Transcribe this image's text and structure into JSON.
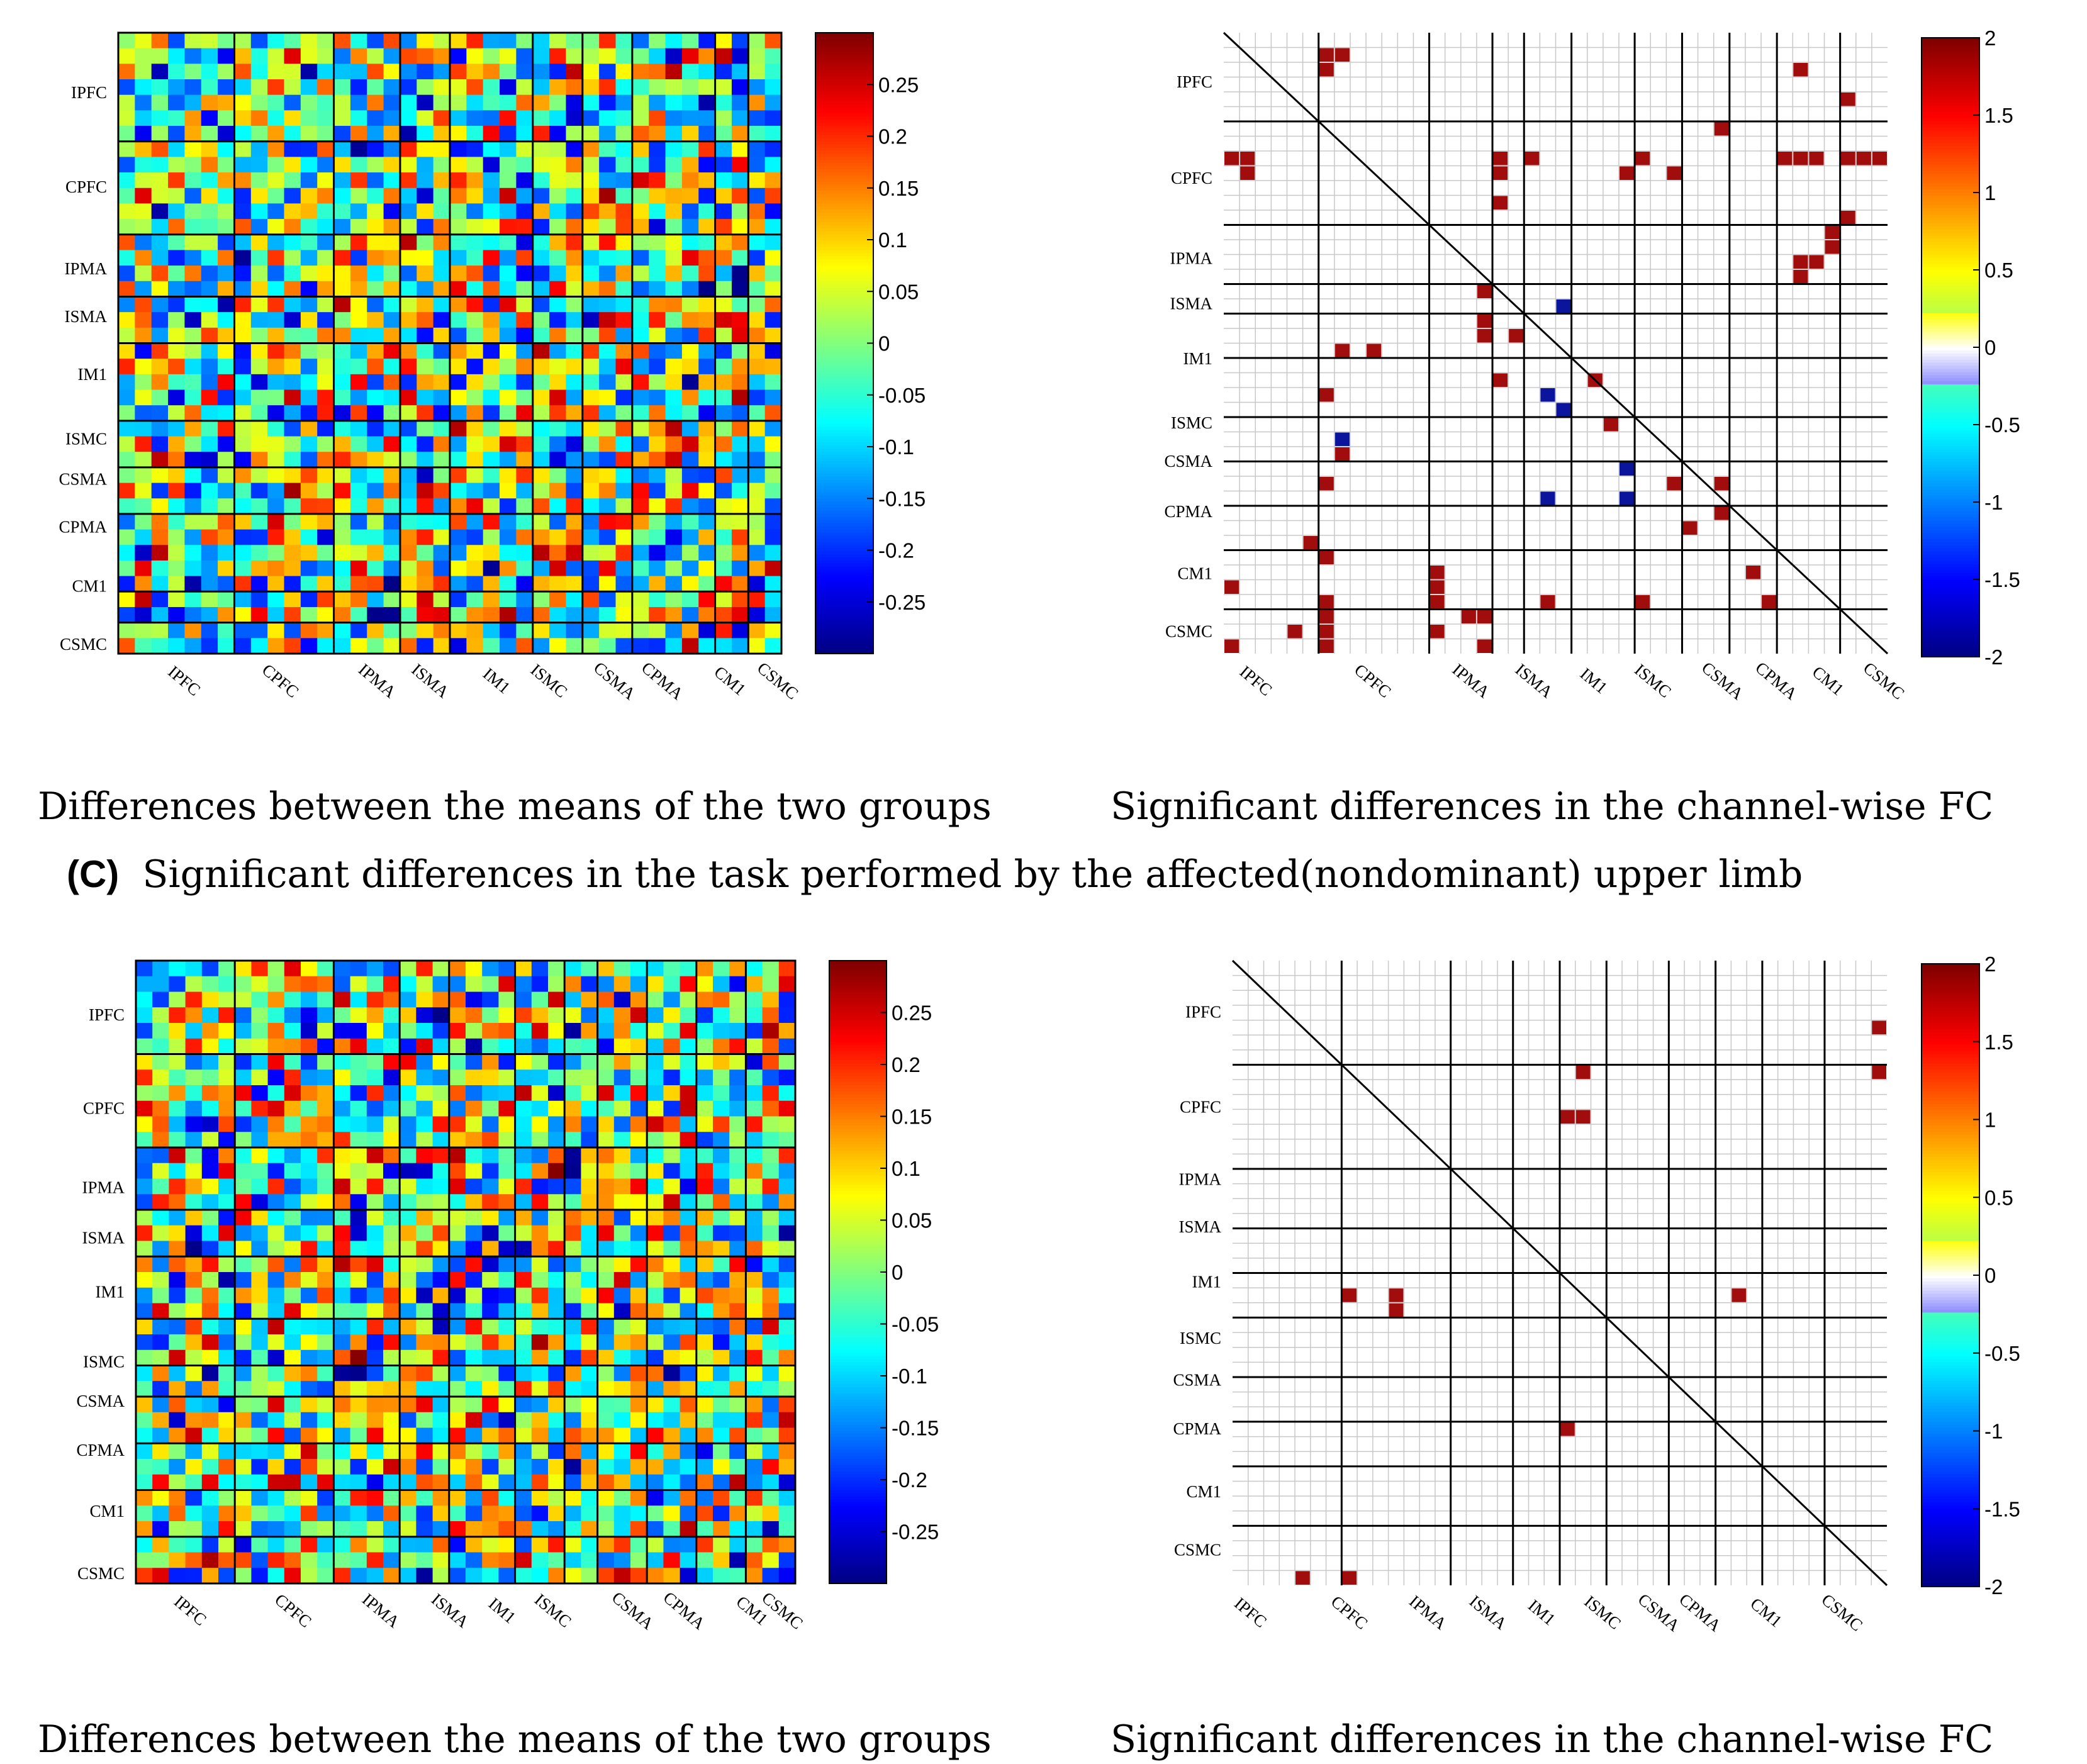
{
  "panels": {
    "C": {
      "letter": "(C)",
      "title": "Significant differences in the task performed by the affected(nondominant) upper limb",
      "mean_caption": "Differences between the means of the two groups",
      "sig_caption": "Significant differences in the channel-wise FC"
    },
    "D": {
      "mean_caption": "Differences between the means of the two groups",
      "sig_caption": "Significant differences in the channel-wise FC"
    }
  },
  "regions": [
    "IPFC",
    "CPFC",
    "IPMA",
    "ISMA",
    "IM1",
    "ISMC",
    "CSMA",
    "CPMA",
    "CM1",
    "CSMC"
  ],
  "colors": {
    "sig_positive": "#a10d0d",
    "sig_negative": "#0b149c",
    "grid": "#c8c8c8"
  },
  "chart_data": [
    {
      "id": "c-mean",
      "type": "heatmap",
      "title": "Differences between the means of the two groups",
      "n_channels": 40,
      "region_boundaries": [
        7,
        13,
        17,
        20,
        25,
        28,
        31,
        36,
        38
      ],
      "colorscale": "jet",
      "clim": [
        -0.3,
        0.3
      ],
      "colorbar_ticks": [
        "0.25",
        "0.2",
        "0.15",
        "0.1",
        "0.05",
        "0",
        "-0.05",
        "-0.1",
        "-0.15",
        "-0.2",
        "-0.25"
      ],
      "colorbar_tick_values": [
        0.25,
        0.2,
        0.15,
        0.1,
        0.05,
        0,
        -0.05,
        -0.1,
        -0.15,
        -0.2,
        -0.25
      ],
      "seed": 11
    },
    {
      "id": "c-sig",
      "type": "heatmap",
      "title": "Significant differences in the channel-wise FC",
      "n_channels": 42,
      "region_boundaries": [
        6,
        13,
        17,
        19,
        22,
        26,
        29,
        32,
        35,
        39
      ],
      "clim": [
        -2,
        2
      ],
      "colorbar_ticks": [
        "2",
        "1.5",
        "1",
        "0.5",
        "0",
        "-0.5",
        "-1",
        "-1.5",
        "-2"
      ],
      "colorbar_tick_values": [
        2,
        1.5,
        1,
        0.5,
        0,
        -0.5,
        -1,
        -1.5,
        -2
      ],
      "significant_cells": [
        [
          1,
          6,
          2
        ],
        [
          1,
          7,
          2
        ],
        [
          2,
          6,
          2
        ],
        [
          2,
          36,
          2
        ],
        [
          4,
          39,
          2
        ],
        [
          6,
          31,
          2
        ],
        [
          8,
          0,
          2
        ],
        [
          8,
          1,
          2
        ],
        [
          8,
          17,
          2
        ],
        [
          8,
          19,
          2
        ],
        [
          8,
          26,
          2
        ],
        [
          8,
          35,
          2
        ],
        [
          8,
          36,
          2
        ],
        [
          8,
          37,
          2
        ],
        [
          8,
          39,
          2
        ],
        [
          8,
          40,
          2
        ],
        [
          8,
          41,
          2
        ],
        [
          9,
          1,
          2
        ],
        [
          9,
          17,
          2
        ],
        [
          9,
          25,
          2
        ],
        [
          9,
          28,
          2
        ],
        [
          11,
          17,
          2
        ],
        [
          12,
          39,
          2
        ],
        [
          13,
          38,
          2
        ],
        [
          14,
          38,
          2
        ],
        [
          15,
          36,
          2
        ],
        [
          15,
          37,
          2
        ],
        [
          16,
          36,
          2
        ],
        [
          17,
          16,
          2
        ],
        [
          18,
          21,
          -2
        ],
        [
          19,
          16,
          2
        ],
        [
          20,
          16,
          2
        ],
        [
          20,
          18,
          2
        ],
        [
          21,
          7,
          2
        ],
        [
          21,
          9,
          2
        ],
        [
          23,
          17,
          2
        ],
        [
          23,
          23,
          2
        ],
        [
          24,
          6,
          2
        ],
        [
          24,
          20,
          -2
        ],
        [
          25,
          21,
          -2
        ],
        [
          26,
          24,
          2
        ],
        [
          27,
          7,
          -2
        ],
        [
          28,
          7,
          2
        ],
        [
          29,
          25,
          -2
        ],
        [
          30,
          6,
          2
        ],
        [
          30,
          28,
          2
        ],
        [
          30,
          31,
          2
        ],
        [
          31,
          20,
          -2
        ],
        [
          31,
          25,
          -2
        ],
        [
          32,
          31,
          2
        ],
        [
          33,
          29,
          2
        ],
        [
          34,
          5,
          2
        ],
        [
          35,
          6,
          2
        ],
        [
          36,
          13,
          2
        ],
        [
          36,
          33,
          2
        ],
        [
          37,
          0,
          2
        ],
        [
          37,
          13,
          2
        ],
        [
          38,
          6,
          2
        ],
        [
          38,
          13,
          2
        ],
        [
          38,
          20,
          2
        ],
        [
          38,
          26,
          2
        ],
        [
          38,
          34,
          2
        ],
        [
          39,
          6,
          2
        ],
        [
          39,
          15,
          2
        ],
        [
          39,
          16,
          2
        ],
        [
          40,
          13,
          2
        ],
        [
          40,
          4,
          2
        ],
        [
          40,
          6,
          2
        ],
        [
          41,
          0,
          2
        ],
        [
          41,
          6,
          2
        ],
        [
          41,
          16,
          2
        ]
      ]
    },
    {
      "id": "d-mean",
      "type": "heatmap",
      "title": "Differences between the means of the two groups",
      "n_channels": 40,
      "region_boundaries": [
        6,
        12,
        16,
        19,
        23,
        26,
        28,
        31,
        34,
        37
      ],
      "colorscale": "jet",
      "clim": [
        -0.3,
        0.3
      ],
      "colorbar_ticks": [
        "0.25",
        "0.2",
        "0.15",
        "0.1",
        "0.05",
        "0",
        "-0.05",
        "-0.1",
        "-0.15",
        "-0.2",
        "-0.25"
      ],
      "colorbar_tick_values": [
        0.25,
        0.2,
        0.15,
        0.1,
        0.05,
        0,
        -0.05,
        -0.1,
        -0.15,
        -0.2,
        -0.25
      ],
      "seed": 29
    },
    {
      "id": "d-sig",
      "type": "heatmap",
      "title": "Significant differences in the channel-wise FC",
      "n_channels": 42,
      "region_boundaries": [
        7,
        14,
        18,
        21,
        24,
        28,
        31,
        34,
        38
      ],
      "clim": [
        -2,
        2
      ],
      "colorbar_ticks": [
        "2",
        "1.5",
        "1",
        "0.5",
        "0",
        "-0.5",
        "-1",
        "-1.5",
        "-2"
      ],
      "colorbar_tick_values": [
        2,
        1.5,
        1,
        0.5,
        0,
        -0.5,
        -1,
        -1.5,
        -2
      ],
      "significant_cells": [
        [
          4,
          41,
          2
        ],
        [
          7,
          22,
          2
        ],
        [
          7,
          41,
          2
        ],
        [
          10,
          21,
          2
        ],
        [
          10,
          22,
          2
        ],
        [
          22,
          7,
          2
        ],
        [
          22,
          10,
          2
        ],
        [
          22,
          32,
          2
        ],
        [
          23,
          10,
          2
        ],
        [
          31,
          21,
          2
        ],
        [
          41,
          4,
          2
        ],
        [
          41,
          7,
          2
        ]
      ]
    }
  ]
}
